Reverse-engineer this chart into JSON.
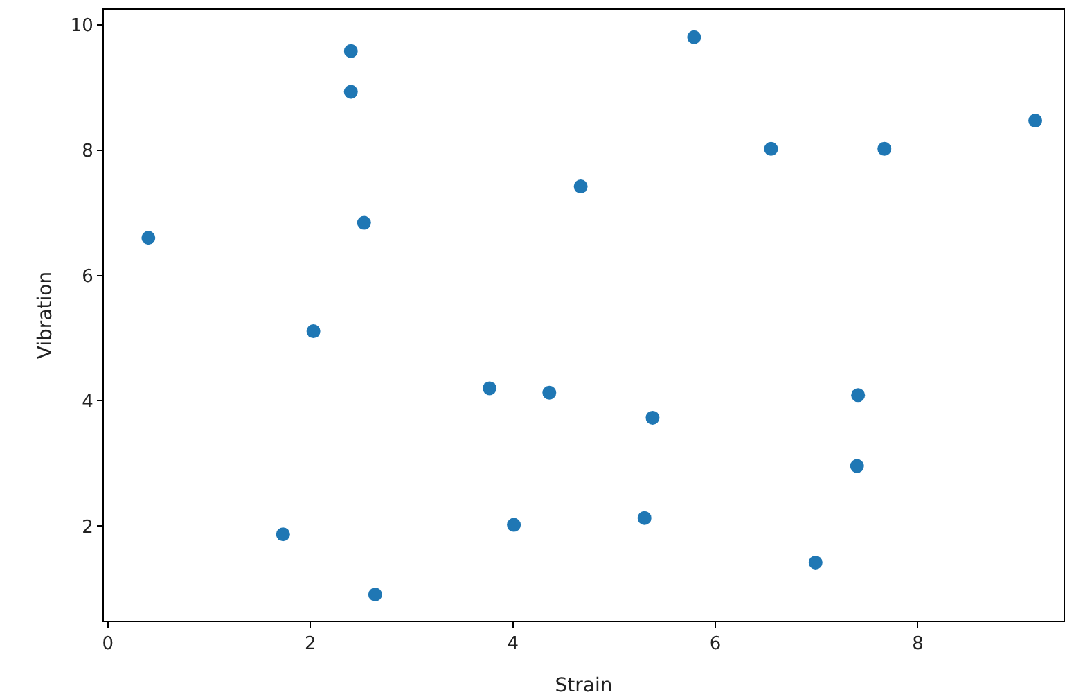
{
  "chart_data": {
    "type": "scatter",
    "xlabel": "Strain",
    "ylabel": "Vibration",
    "x": [
      0.4,
      2.4,
      2.4,
      2.53,
      2.03,
      1.73,
      2.64,
      3.77,
      4.36,
      4.01,
      4.67,
      5.38,
      5.3,
      5.79,
      6.55,
      7.67,
      9.16,
      7.41,
      7.4,
      6.99
    ],
    "series": [
      {
        "color": "#1f77b4",
        "values": [
          6.6,
          9.58,
          8.93,
          6.84,
          5.11,
          1.87,
          0.91,
          4.2,
          4.13,
          2.02,
          7.42,
          3.73,
          2.13,
          9.8,
          8.02,
          8.02,
          8.47,
          4.09,
          2.96,
          1.42
        ]
      }
    ],
    "xlim": [
      -0.04,
      9.44
    ],
    "ylim": [
      0.49,
      10.24
    ],
    "xticks": [
      0,
      2,
      4,
      6,
      8
    ],
    "yticks": [
      2,
      4,
      6,
      8,
      10
    ],
    "grid": false,
    "marker": "circle"
  }
}
